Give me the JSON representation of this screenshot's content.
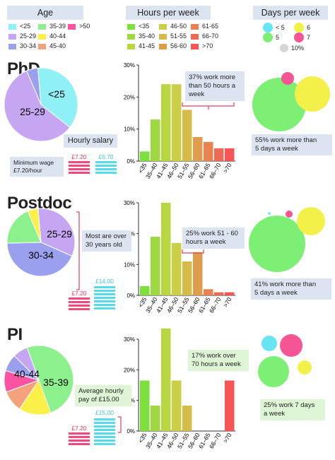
{
  "legend": {
    "age": {
      "title": "Age",
      "items": [
        {
          "label": "<25",
          "color": "#8ff0f5"
        },
        {
          "label": "25-29",
          "color": "#c6a6f2"
        },
        {
          "label": "30-34",
          "color": "#9aa0ee"
        },
        {
          "label": "35-39",
          "color": "#8cf08c"
        },
        {
          "label": "40-44",
          "color": "#fbf04a"
        },
        {
          "label": "45-40",
          "color": "#f3a27c"
        },
        {
          "label": ">50",
          "color": "#f953a1"
        }
      ]
    },
    "hours": {
      "title": "Hours per week",
      "items": [
        {
          "label": "<35",
          "color": "#7ee03c"
        },
        {
          "label": "35-40",
          "color": "#9ed941"
        },
        {
          "label": "41-45",
          "color": "#b8d642"
        },
        {
          "label": "46-50",
          "color": "#cbcf48"
        },
        {
          "label": "51-55",
          "color": "#d6bb4a"
        },
        {
          "label": "56-60",
          "color": "#e09c4d"
        },
        {
          "label": "61-65",
          "color": "#e98150"
        },
        {
          "label": "66-70",
          "color": "#ee6a54"
        },
        {
          "label": ">70",
          "color": "#f45656"
        }
      ]
    },
    "days": {
      "title": "Days per week",
      "items": [
        {
          "label": "< 5",
          "color": "#69e4f4"
        },
        {
          "label": "6",
          "color": "#f4f04a"
        },
        {
          "label": "5",
          "color": "#7eef75"
        },
        {
          "label": "7",
          "color": "#f55495"
        },
        {
          "label": "10%",
          "color": "#d6d6d6"
        }
      ]
    }
  },
  "sections": {
    "phd": {
      "title": "PhD",
      "pie_labels": [
        "<25",
        "25-29"
      ],
      "salary_title": "Hourly salary",
      "min_wage": "Minimum wage\n£7.20/hour",
      "salary_red": "£7.20",
      "salary_blue": "£6.70",
      "callout_hours": "37% work more\nthan 50 hours a\nweek",
      "callout_days": "55% work more than\n5 days a week"
    },
    "postdoc": {
      "title": "Postdoc",
      "pie_labels": [
        "25-29",
        "30-34"
      ],
      "age_note": "Most are over\n30 years old",
      "salary_red": "£7.20",
      "salary_blue": "£14.00",
      "callout_hours": "25%  work 51 - 60\nhours a week",
      "callout_days": "41% work more than\n5 days a week"
    },
    "pi": {
      "title": "PI",
      "pie_labels": [
        "40-44",
        "35-39"
      ],
      "salary_note": "Average hourly\npay of £15.00",
      "salary_red": "£7.20",
      "salary_blue": "£15.00",
      "callout_hours": "17% work over\n70 hours a week",
      "callout_days": "25% work 7 days\na week"
    }
  },
  "chart_data": [
    {
      "type": "bar",
      "title": "",
      "categories": [
        "<35",
        "35–40",
        "41–45",
        "46–50",
        "51–55",
        "56–60",
        "61–65",
        "66–70",
        ">70"
      ],
      "values": [
        3,
        13,
        24,
        24,
        16,
        7.5,
        6,
        4,
        4
      ],
      "ylim": [
        0,
        30
      ],
      "yticks": [
        "0%",
        "10%",
        "20%",
        "30%"
      ]
    },
    {
      "type": "bar",
      "title": "",
      "categories": [
        "<35",
        "35–40",
        "41–45",
        "46–50",
        "51–55",
        "56–60",
        "61–65",
        "66–70",
        ">70"
      ],
      "values": [
        3,
        19,
        30,
        17,
        11,
        14,
        2,
        1,
        1
      ],
      "ylim": [
        0,
        30
      ],
      "yticks": [
        "0%",
        "10%",
        "20%",
        "30%"
      ]
    },
    {
      "type": "bar",
      "title": "",
      "categories": [
        "<35",
        "35–40",
        "41–45",
        "46–50",
        "51–55",
        "56–60",
        "61–65",
        "66–70",
        ">70"
      ],
      "values": [
        16.5,
        8.3,
        33.5,
        16.5,
        8.3,
        0,
        0,
        0,
        16.5
      ],
      "ylim": [
        0,
        30
      ],
      "yticks": [
        "0%",
        "10%",
        "20%",
        "30%"
      ]
    },
    {
      "type": "pie",
      "name": "PhD age",
      "slices": [
        {
          "label": "<25",
          "value": 37
        },
        {
          "label": "25-29",
          "value": 58
        },
        {
          "label": "30-34",
          "value": 5
        }
      ]
    },
    {
      "type": "pie",
      "name": "Postdoc age",
      "slices": [
        {
          "label": "25-29",
          "value": 33
        },
        {
          "label": "30-34",
          "value": 43
        },
        {
          "label": "35-39",
          "value": 19
        },
        {
          "label": "40-44",
          "value": 5
        }
      ]
    },
    {
      "type": "pie",
      "name": "PI age",
      "slices": [
        {
          "label": "35-39",
          "value": 50
        },
        {
          "label": "40-44",
          "value": 15
        },
        {
          "label": "45-40",
          "value": 10
        },
        {
          "label": ">50",
          "value": 10
        },
        {
          "label": "30-34",
          "value": 8
        },
        {
          "label": "25-29",
          "value": 7
        }
      ]
    }
  ]
}
